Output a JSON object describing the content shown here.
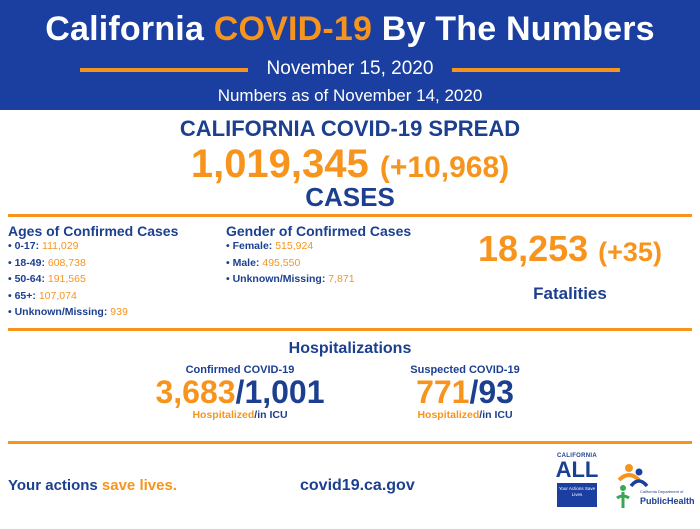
{
  "header": {
    "title_part1": "California ",
    "title_highlight": "COVID-19",
    "title_part2": " By The Numbers",
    "date": "November 15, 2020",
    "as_of": "Numbers as of November 14, 2020"
  },
  "spread": {
    "title": "CALIFORNIA COVID-19 SPREAD",
    "cases_total": "1,019,345",
    "cases_delta": "(+10,968)",
    "cases_label": "CASES"
  },
  "ages": {
    "title": "Ages of Confirmed Cases",
    "items": [
      {
        "label": "• 0-17: ",
        "value": "111,029"
      },
      {
        "label": "• 18-49: ",
        "value": "608,738"
      },
      {
        "label": "• 50-64: ",
        "value": "191,565"
      },
      {
        "label": "• 65+: ",
        "value": "107,074"
      },
      {
        "label": "• Unknown/Missing: ",
        "value": "939"
      }
    ]
  },
  "gender": {
    "title": "Gender of Confirmed Cases",
    "items": [
      {
        "label": "• Female: ",
        "value": "515,924"
      },
      {
        "label": "• Male: ",
        "value": "495,550"
      },
      {
        "label": "• Unknown/Missing: ",
        "value": "7,871"
      }
    ]
  },
  "fatalities": {
    "total": "18,253",
    "delta": "(+35)",
    "label": "Fatalities"
  },
  "hospitalizations": {
    "title": "Hospitalizations",
    "confirmed": {
      "label": "Confirmed COVID-19",
      "hospitalized": "3,683",
      "slash": "/",
      "icu": "1,001",
      "cap_hospitalized": "Hospitalized",
      "cap_icu": "/in ICU"
    },
    "suspected": {
      "label": "Suspected COVID-19",
      "hospitalized": "771",
      "slash": "/",
      "icu": "93",
      "cap_hospitalized": "Hospitalized",
      "cap_icu": "/in ICU"
    }
  },
  "footer": {
    "tagline_part1": "Your actions ",
    "tagline_highlight": "save lives.",
    "url": "covid19.ca.gov",
    "all_logo_top": "CALIFORNIA",
    "all_logo_big": "ALL",
    "all_logo_box": "Your Actions Save Lives",
    "ph_logo_small": "California Department of",
    "ph_logo_text": "PublicHealth"
  },
  "colors": {
    "brand_blue": "#1a3fa0",
    "text_blue": "#1c3f8f",
    "accent_orange": "#f7941d"
  }
}
